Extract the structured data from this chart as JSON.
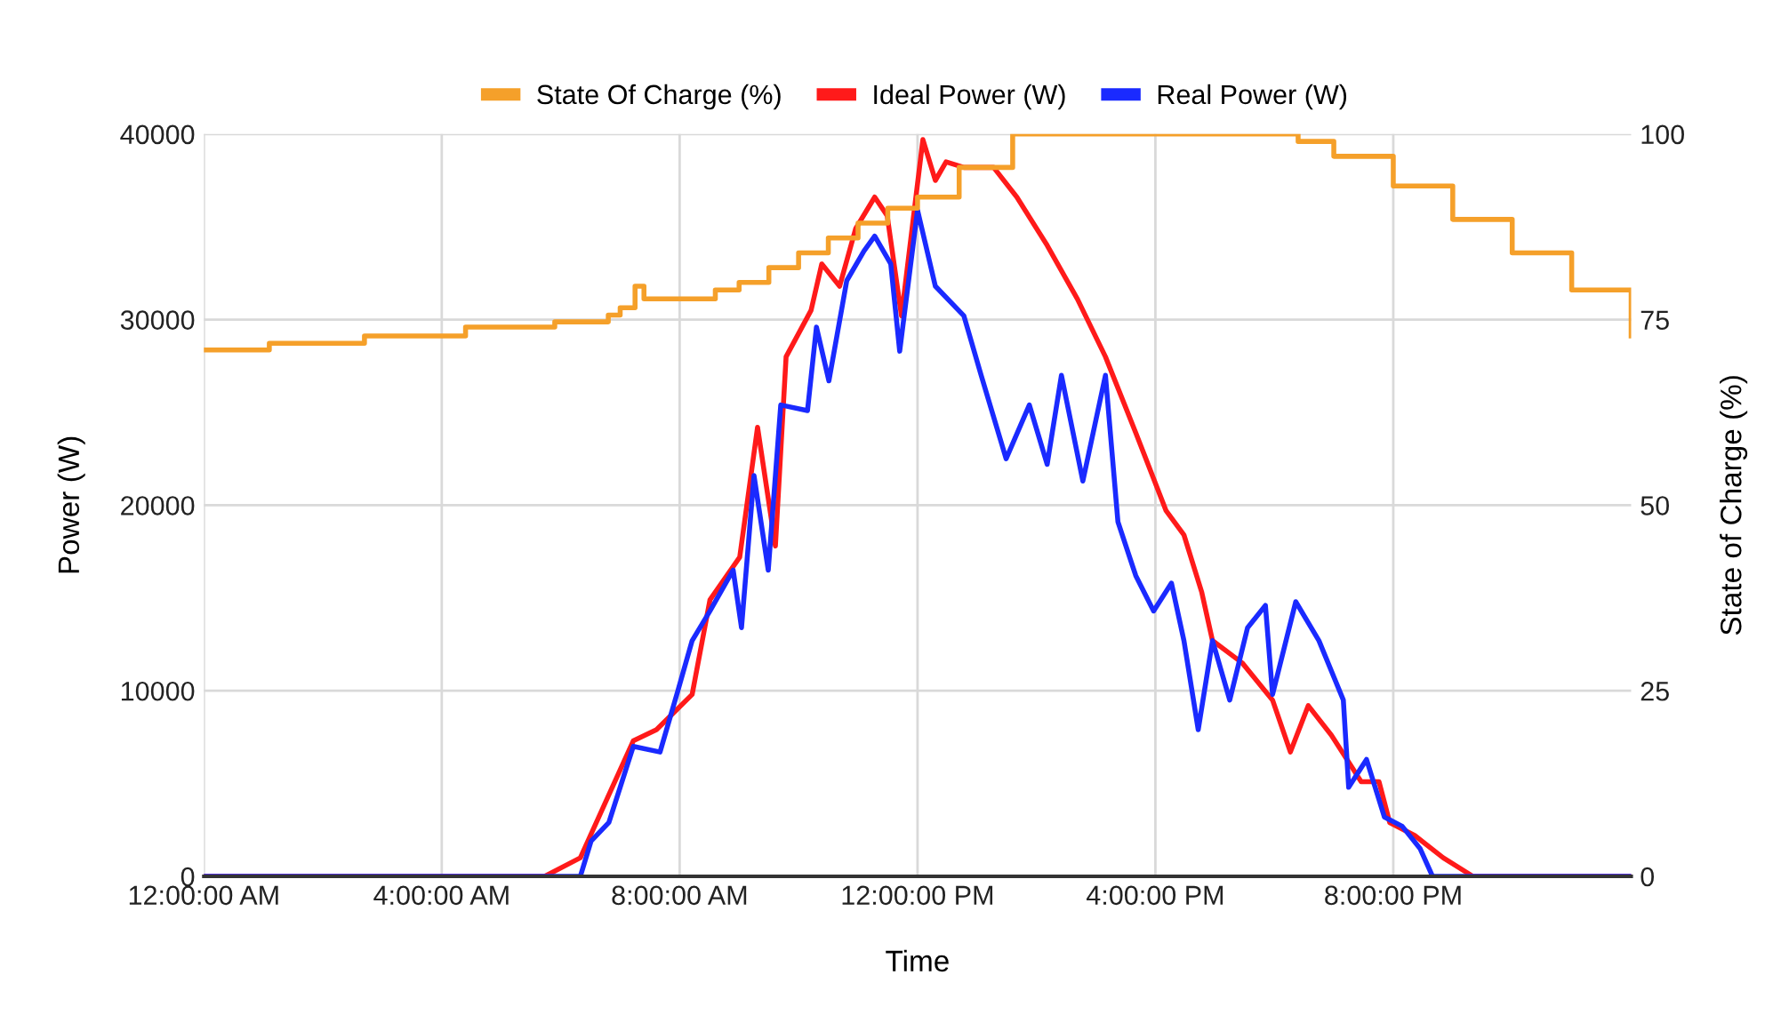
{
  "chart_data": {
    "type": "line",
    "xlabel": "Time",
    "ylabel": "Power (W)",
    "y2label": "State of Charge (%)",
    "xlim": [
      0,
      24
    ],
    "xticks": [
      {
        "value": 0,
        "label": "12:00:00 AM"
      },
      {
        "value": 4,
        "label": "4:00:00 AM"
      },
      {
        "value": 8,
        "label": "8:00:00 AM"
      },
      {
        "value": 12,
        "label": "12:00:00 PM"
      },
      {
        "value": 16,
        "label": "4:00:00 PM"
      },
      {
        "value": 20,
        "label": "8:00:00 PM"
      }
    ],
    "ylim": [
      0,
      40000
    ],
    "yticks": [
      0,
      10000,
      20000,
      30000,
      40000
    ],
    "y2lim": [
      0,
      100
    ],
    "y2ticks": [
      0,
      25,
      50,
      75,
      100
    ],
    "grid": true,
    "legend": "top",
    "series": [
      {
        "name": "State Of Charge (%)",
        "type": "step",
        "axis": "y2",
        "color": "#f5a02a",
        "x": [
          0,
          1.1,
          2.7,
          4.4,
          5.9,
          6.8,
          7.0,
          7.25,
          7.4,
          8.6,
          9.0,
          9.5,
          10.0,
          10.5,
          11.0,
          11.5,
          12.0,
          12.7,
          13.6,
          18.4,
          19.0,
          20.0,
          21.0,
          22.0,
          23.0,
          24.0
        ],
        "values": [
          70.9,
          71.8,
          72.8,
          74,
          74.7,
          75.6,
          76.6,
          79.5,
          77.8,
          79,
          80,
          82,
          84,
          86,
          88,
          90,
          91.5,
          95.5,
          100,
          99,
          97,
          93,
          88.5,
          84,
          79,
          72.8
        ]
      },
      {
        "name": "Ideal Power (W)",
        "color": "#ff1a1a",
        "x": [
          0,
          5.73,
          6.33,
          7.22,
          7.61,
          8.21,
          8.51,
          9.01,
          9.31,
          9.61,
          9.79,
          10.21,
          10.39,
          10.69,
          10.96,
          11.28,
          11.49,
          11.73,
          12.09,
          12.3,
          12.48,
          12.78,
          13.28,
          13.67,
          14.18,
          14.69,
          15.16,
          15.67,
          16.18,
          16.48,
          16.78,
          16.96,
          17.46,
          17.97,
          18.27,
          18.57,
          18.96,
          19.46,
          19.76,
          19.94,
          20.36,
          20.84,
          21.34,
          24
        ],
        "values": [
          0,
          0,
          1000,
          7300,
          7900,
          9800,
          14900,
          17200,
          24200,
          17800,
          28000,
          30500,
          33000,
          31800,
          34900,
          36600,
          35600,
          30200,
          39700,
          37500,
          38500,
          38200,
          38200,
          36600,
          34000,
          31100,
          28000,
          23900,
          19700,
          18400,
          15300,
          12700,
          11500,
          9500,
          6700,
          9200,
          7600,
          5100,
          5100,
          2900,
          2200,
          1000,
          0,
          0
        ]
      },
      {
        "name": "Real Power (W)",
        "color": "#1a2aff",
        "x": [
          0,
          6.33,
          6.51,
          6.81,
          7.22,
          7.67,
          7.97,
          8.21,
          8.51,
          8.9,
          9.04,
          9.25,
          9.49,
          9.7,
          10.15,
          10.3,
          10.51,
          10.81,
          11.1,
          11.28,
          11.55,
          11.7,
          12.0,
          12.3,
          12.78,
          13.07,
          13.49,
          13.88,
          14.18,
          14.42,
          14.78,
          15.16,
          15.37,
          15.67,
          15.97,
          16.27,
          16.48,
          16.72,
          16.96,
          17.25,
          17.55,
          17.85,
          17.97,
          18.36,
          18.75,
          19.16,
          19.25,
          19.55,
          19.85,
          20.15,
          20.45,
          20.66,
          24
        ],
        "values": [
          0,
          0,
          1900,
          2900,
          7000,
          6700,
          10000,
          12700,
          14300,
          16500,
          13400,
          21600,
          16500,
          25400,
          25100,
          29600,
          26700,
          32100,
          33700,
          34500,
          33000,
          28300,
          35900,
          31800,
          30200,
          27000,
          22500,
          25400,
          22200,
          27000,
          21300,
          27000,
          19100,
          16200,
          14300,
          15800,
          12700,
          7900,
          12700,
          9500,
          13400,
          14600,
          9800,
          14800,
          12700,
          9500,
          4800,
          6300,
          3200,
          2700,
          1500,
          0,
          0
        ]
      }
    ]
  }
}
